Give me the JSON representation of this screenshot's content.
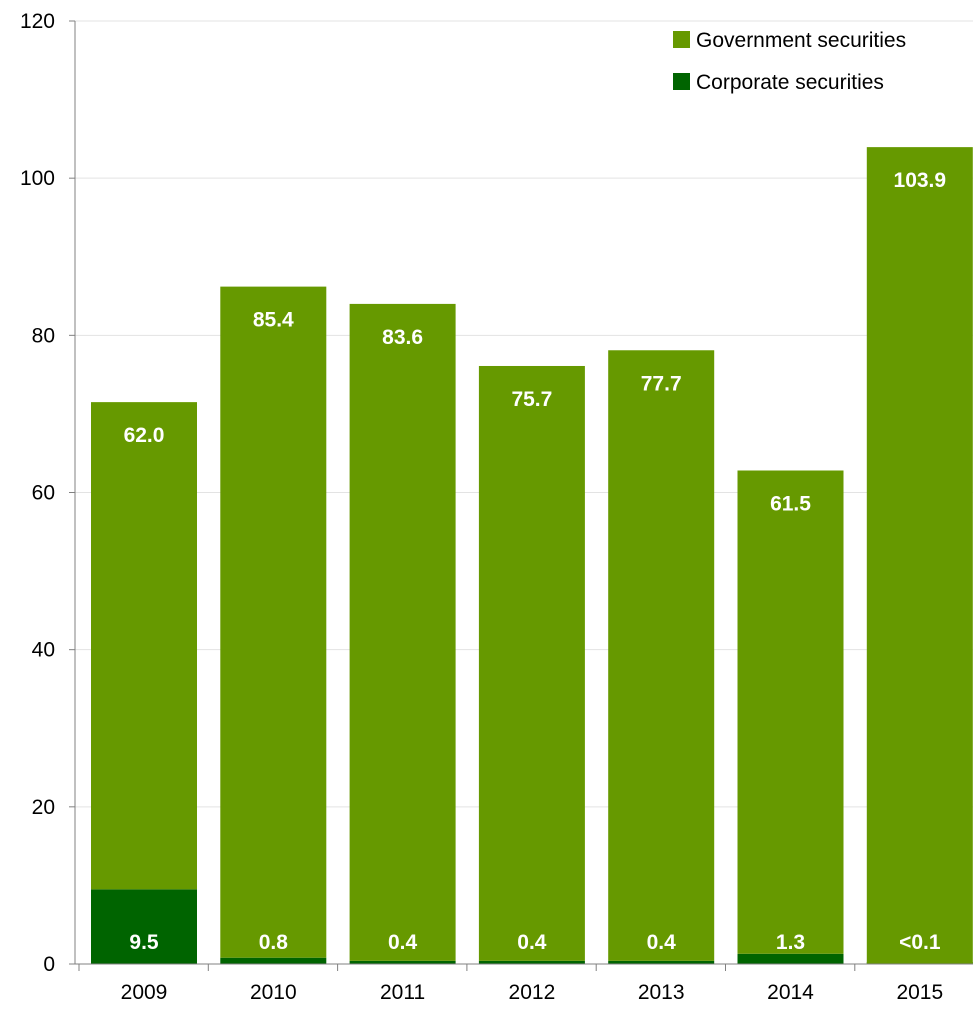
{
  "chart_data": {
    "type": "bar",
    "stacked": true,
    "categories": [
      "2009",
      "2010",
      "2011",
      "2012",
      "2013",
      "2014",
      "2015"
    ],
    "series": [
      {
        "name": "Corporate securities",
        "color": "#006400",
        "values": [
          9.5,
          0.8,
          0.4,
          0.4,
          0.4,
          1.3,
          0.05
        ],
        "labels": [
          "9.5",
          "0.8",
          "0.4",
          "0.4",
          "0.4",
          "1.3",
          "<0.1"
        ]
      },
      {
        "name": "Government securities",
        "color": "#669900",
        "values": [
          62.0,
          85.4,
          83.6,
          75.7,
          77.7,
          61.5,
          103.9
        ],
        "labels": [
          "62.0",
          "85.4",
          "83.6",
          "75.7",
          "77.7",
          "61.5",
          "103.9"
        ]
      }
    ],
    "legend_order": [
      "Government securities",
      "Corporate securities"
    ],
    "ylim": [
      0,
      120
    ],
    "yticks": [
      0,
      20,
      40,
      60,
      80,
      100,
      120
    ],
    "grid": true,
    "legend_position": "top-right"
  }
}
